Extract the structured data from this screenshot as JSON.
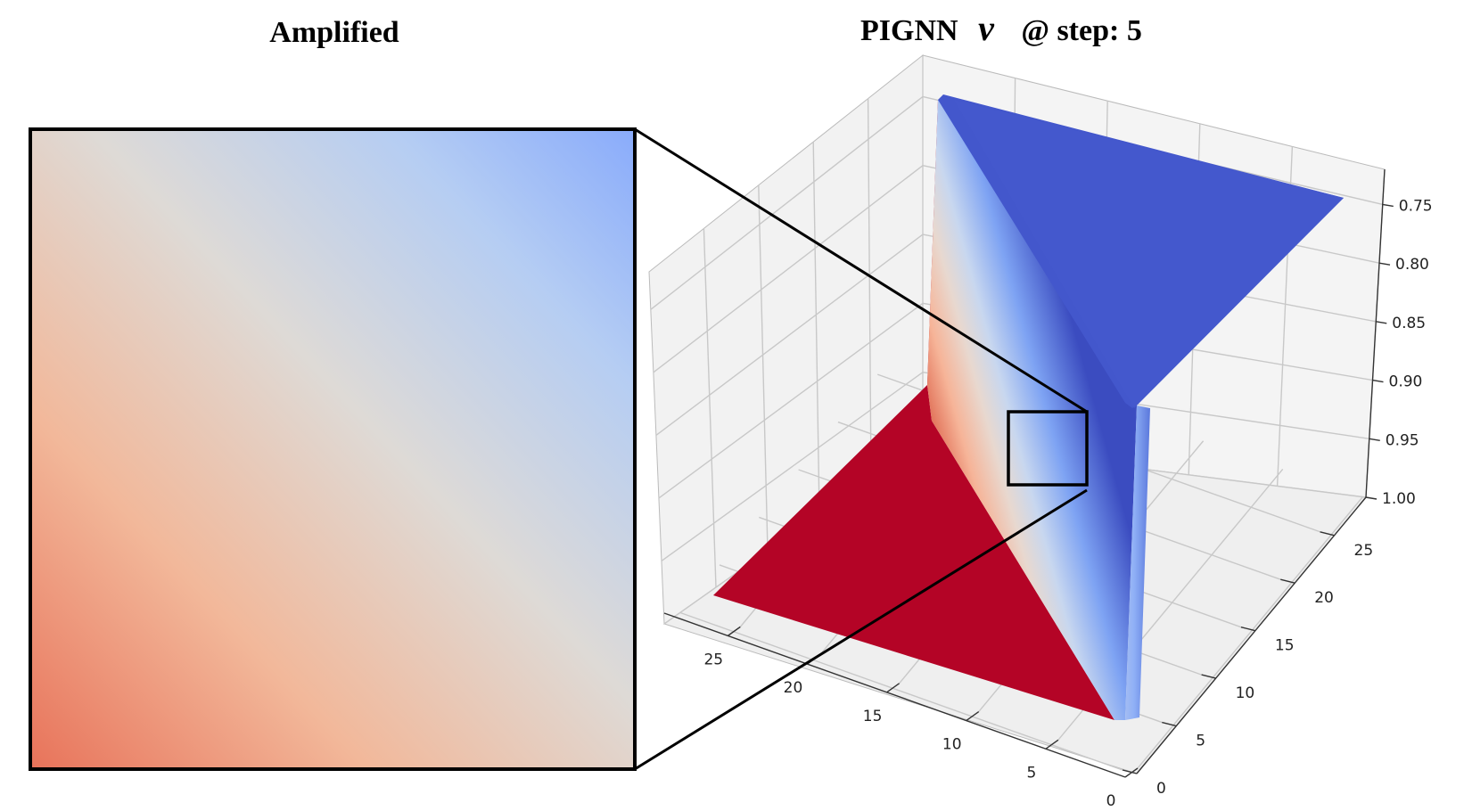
{
  "titles": {
    "left": "Amplified",
    "right_prefix": "PIGNN",
    "right_symbol": "v",
    "right_suffix": "@ step: 5"
  },
  "colors": {
    "high": "#b40426",
    "low": "#3b4cc0",
    "inset_bottom_left": "#e8735a",
    "inset_mid": "#dcdcdc",
    "inset_top_right": "#8aaefc",
    "pane": "#f2f2f2",
    "grid": "#c8c8c8"
  },
  "chart_data": [
    {
      "type": "surface",
      "title": "PIGNN v @ step: 5",
      "colormap": "coolwarm",
      "x_ticks": [
        0,
        5,
        10,
        15,
        20,
        25
      ],
      "y_ticks": [
        0,
        5,
        10,
        15,
        20,
        25
      ],
      "z_ticks": [
        "0.75",
        "0.80",
        "0.85",
        "0.90",
        "0.95",
        "1.00"
      ],
      "x_range": [
        0,
        29
      ],
      "y_range": [
        0,
        29
      ],
      "z_range": [
        0.72,
        1.0
      ],
      "z_inverted": true,
      "surface": {
        "high_value": 1.0,
        "low_value": 0.72,
        "transition": "steep step along diagonal x = y"
      },
      "zoom_region": "small square on the diagonal transition"
    },
    {
      "type": "heatmap",
      "title": "Amplified",
      "description_of_colors": "gradient from light red (bottom-left) through near-white to light blue (top-right)"
    }
  ]
}
